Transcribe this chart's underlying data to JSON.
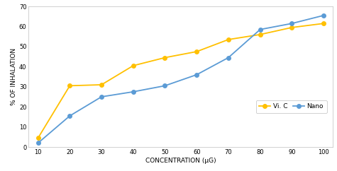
{
  "x": [
    10,
    20,
    30,
    40,
    50,
    60,
    70,
    80,
    90,
    100
  ],
  "vic_y": [
    4.5,
    30.5,
    31.0,
    40.5,
    44.5,
    47.5,
    53.5,
    56.0,
    59.5,
    61.5
  ],
  "nano_y": [
    2.0,
    15.5,
    25.0,
    27.5,
    30.5,
    36.0,
    44.5,
    58.5,
    61.5,
    65.5
  ],
  "vic_color": "#FFC000",
  "nano_color": "#5B9BD5",
  "vic_label": "Vi. C",
  "nano_label": "Nano",
  "xlabel": "CONCENTRATION (μG)",
  "ylabel": "% OF INHALATION",
  "xlim": [
    7,
    103
  ],
  "ylim": [
    0,
    70
  ],
  "yticks": [
    0,
    10,
    20,
    30,
    40,
    50,
    60,
    70
  ],
  "xticks": [
    10,
    20,
    30,
    40,
    50,
    60,
    70,
    80,
    90,
    100
  ],
  "marker": "o",
  "marker_size": 4,
  "linewidth": 1.3,
  "xlabel_fontsize": 6.5,
  "ylabel_fontsize": 6.5,
  "tick_fontsize": 6,
  "legend_fontsize": 6.5,
  "spine_color": "#BFBFBF",
  "bg_color": "#FFFFFF",
  "fig_color": "#FFFFFF"
}
